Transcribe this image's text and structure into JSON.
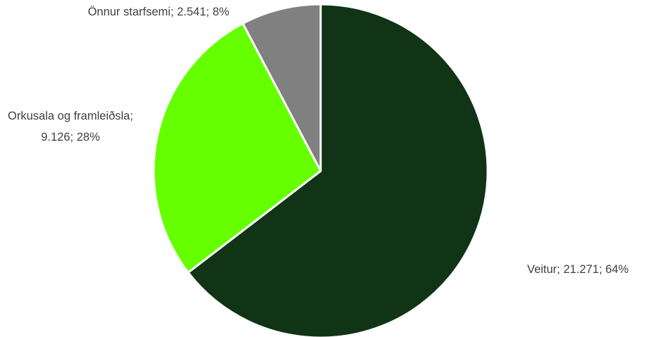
{
  "chart_data": {
    "type": "pie",
    "categories": [
      "Veitur",
      "Orkusala og framleiðsla",
      "Önnur starfsemi"
    ],
    "values": [
      21271,
      9126,
      2541
    ],
    "value_labels": [
      "21.271",
      "9.126",
      "2.541"
    ],
    "percentage_labels": [
      "64%",
      "28%",
      "8%"
    ],
    "colors": [
      "#113316",
      "#66ff00",
      "#808080"
    ]
  }
}
